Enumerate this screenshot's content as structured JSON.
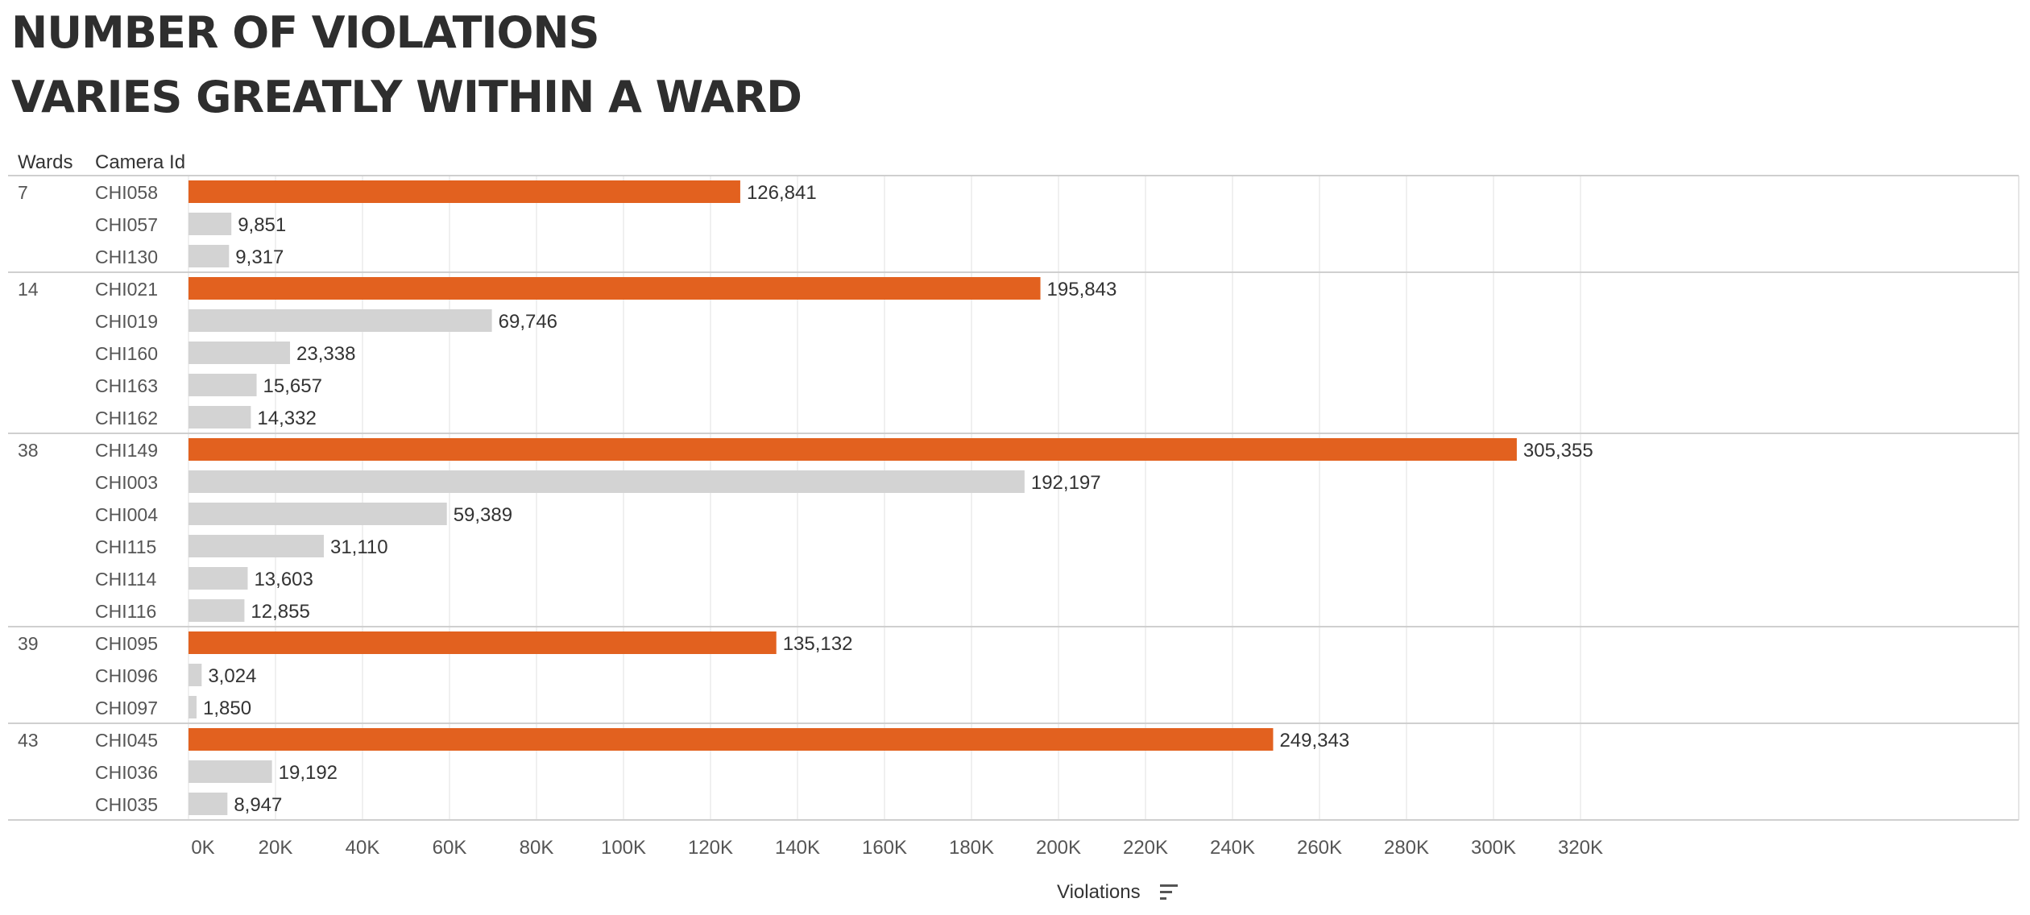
{
  "title": {
    "line1": "NUMBER OF VIOLATIONS",
    "line2": "VARIES GREATLY WITHIN A WARD"
  },
  "headers": {
    "wards": "Wards",
    "camera": "Camera Id"
  },
  "colors": {
    "highlight": "#e2611f",
    "other": "#d3d3d3",
    "text": "#333333",
    "label": "#555555"
  },
  "sort_icon": "sort-descending-icon",
  "chart_data": {
    "type": "bar",
    "orientation": "horizontal",
    "xlabel": "Violations",
    "xlim": [
      0,
      330000
    ],
    "xticks": [
      0,
      20000,
      40000,
      60000,
      80000,
      100000,
      120000,
      140000,
      160000,
      180000,
      200000,
      220000,
      240000,
      260000,
      280000,
      300000,
      320000
    ],
    "xtick_labels": [
      "0K",
      "20K",
      "40K",
      "60K",
      "80K",
      "100K",
      "120K",
      "140K",
      "160K",
      "180K",
      "200K",
      "220K",
      "240K",
      "260K",
      "280K",
      "300K",
      "320K"
    ],
    "grid": true,
    "groups": [
      {
        "ward": "7",
        "cameras": [
          {
            "id": "CHI058",
            "value": 126841,
            "label": "126,841",
            "highlight": true
          },
          {
            "id": "CHI057",
            "value": 9851,
            "label": "9,851",
            "highlight": false
          },
          {
            "id": "CHI130",
            "value": 9317,
            "label": "9,317",
            "highlight": false
          }
        ]
      },
      {
        "ward": "14",
        "cameras": [
          {
            "id": "CHI021",
            "value": 195843,
            "label": "195,843",
            "highlight": true
          },
          {
            "id": "CHI019",
            "value": 69746,
            "label": "69,746",
            "highlight": false
          },
          {
            "id": "CHI160",
            "value": 23338,
            "label": "23,338",
            "highlight": false
          },
          {
            "id": "CHI163",
            "value": 15657,
            "label": "15,657",
            "highlight": false
          },
          {
            "id": "CHI162",
            "value": 14332,
            "label": "14,332",
            "highlight": false
          }
        ]
      },
      {
        "ward": "38",
        "cameras": [
          {
            "id": "CHI149",
            "value": 305355,
            "label": "305,355",
            "highlight": true
          },
          {
            "id": "CHI003",
            "value": 192197,
            "label": "192,197",
            "highlight": false
          },
          {
            "id": "CHI004",
            "value": 59389,
            "label": "59,389",
            "highlight": false
          },
          {
            "id": "CHI115",
            "value": 31110,
            "label": "31,110",
            "highlight": false
          },
          {
            "id": "CHI114",
            "value": 13603,
            "label": "13,603",
            "highlight": false
          },
          {
            "id": "CHI116",
            "value": 12855,
            "label": "12,855",
            "highlight": false
          }
        ]
      },
      {
        "ward": "39",
        "cameras": [
          {
            "id": "CHI095",
            "value": 135132,
            "label": "135,132",
            "highlight": true
          },
          {
            "id": "CHI096",
            "value": 3024,
            "label": "3,024",
            "highlight": false
          },
          {
            "id": "CHI097",
            "value": 1850,
            "label": "1,850",
            "highlight": false
          }
        ]
      },
      {
        "ward": "43",
        "cameras": [
          {
            "id": "CHI045",
            "value": 249343,
            "label": "249,343",
            "highlight": true
          },
          {
            "id": "CHI036",
            "value": 19192,
            "label": "19,192",
            "highlight": false
          },
          {
            "id": "CHI035",
            "value": 8947,
            "label": "8,947",
            "highlight": false
          }
        ]
      }
    ]
  }
}
